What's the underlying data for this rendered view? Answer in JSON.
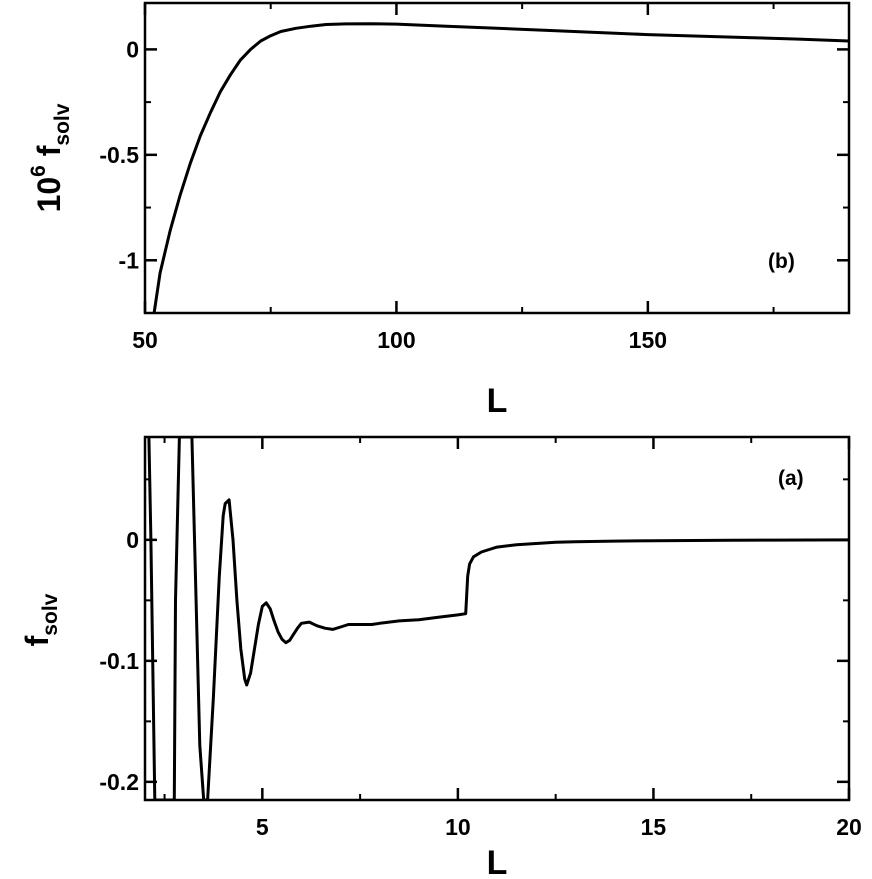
{
  "chart_data": [
    {
      "panel": "(b)",
      "type": "line",
      "xlabel": "L",
      "ylabel": {
        "prefix": "10",
        "exponent": "6",
        "symbol": "f",
        "subscript": "solv"
      },
      "xlim": [
        50,
        190
      ],
      "ylim": [
        -1.25,
        0.22
      ],
      "xticks": [
        50,
        100,
        150
      ],
      "xtick_labels": [
        "50",
        "100",
        "150"
      ],
      "yticks": [
        -1,
        -0.5,
        0
      ],
      "ytick_labels": [
        "-1",
        "-0.5",
        "0"
      ],
      "grid": false,
      "series": [
        {
          "color": "#000000",
          "x": [
            51.8,
            53,
            55,
            57,
            59,
            61,
            63,
            65,
            67,
            69,
            71,
            73,
            75,
            77,
            80,
            83,
            86,
            90,
            95,
            100,
            110,
            120,
            130,
            140,
            150,
            160,
            170,
            180,
            190
          ],
          "y": [
            -1.25,
            -1.06,
            -0.86,
            -0.69,
            -0.54,
            -0.41,
            -0.3,
            -0.2,
            -0.12,
            -0.05,
            0.0,
            0.04,
            0.065,
            0.085,
            0.1,
            0.11,
            0.118,
            0.121,
            0.122,
            0.12,
            0.11,
            0.1,
            0.09,
            0.08,
            0.07,
            0.063,
            0.056,
            0.049,
            0.04
          ]
        }
      ]
    },
    {
      "panel": "(a)",
      "type": "line",
      "xlabel": "L",
      "ylabel": {
        "symbol": "f",
        "subscript": "solv"
      },
      "xlim": [
        2.0,
        20
      ],
      "ylim": [
        -0.215,
        0.085
      ],
      "xticks": [
        5,
        10,
        15,
        20
      ],
      "xtick_labels": [
        "5",
        "10",
        "15",
        "20"
      ],
      "yticks": [
        -0.2,
        -0.1,
        0
      ],
      "ytick_labels": [
        "-0.2",
        "-0.1",
        "0"
      ],
      "grid": false,
      "series": [
        {
          "color": "#000000",
          "x": [
            2.1,
            2.15,
            2.25,
            2.45,
            2.6,
            2.75,
            2.78,
            2.88,
            3.05,
            3.2,
            3.4,
            3.5,
            3.6,
            3.75,
            3.9,
            4.0,
            4.05,
            4.15,
            4.25,
            4.35,
            4.45,
            4.55,
            4.6,
            4.7,
            4.8,
            4.9,
            5.0,
            5.1,
            5.2,
            5.3,
            5.4,
            5.5,
            5.6,
            5.7,
            5.8,
            5.9,
            6.0,
            6.2,
            6.4,
            6.6,
            6.8,
            7.0,
            7.2,
            7.5,
            7.8,
            8.0,
            8.5,
            9.0,
            9.5,
            10.0,
            10.2,
            10.25,
            10.3,
            10.4,
            10.6,
            10.8,
            11.0,
            11.5,
            12.0,
            12.5,
            13.0,
            14.0,
            15.0,
            16.0,
            17.0,
            18.0,
            19.0,
            20.0
          ],
          "y": [
            0.085,
            0.0,
            -0.215,
            -0.215,
            -0.215,
            -0.215,
            -0.05,
            0.085,
            0.085,
            0.085,
            -0.17,
            -0.215,
            -0.215,
            -0.13,
            -0.03,
            0.02,
            0.03,
            0.033,
            0.0,
            -0.05,
            -0.09,
            -0.115,
            -0.12,
            -0.11,
            -0.09,
            -0.07,
            -0.055,
            -0.052,
            -0.057,
            -0.067,
            -0.076,
            -0.082,
            -0.085,
            -0.083,
            -0.078,
            -0.073,
            -0.069,
            -0.068,
            -0.071,
            -0.073,
            -0.074,
            -0.072,
            -0.07,
            -0.07,
            -0.07,
            -0.069,
            -0.067,
            -0.066,
            -0.064,
            -0.062,
            -0.061,
            -0.03,
            -0.02,
            -0.014,
            -0.01,
            -0.008,
            -0.006,
            -0.004,
            -0.003,
            -0.002,
            -0.0015,
            -0.001,
            -0.0007,
            -0.0005,
            -0.0003,
            -0.0002,
            -0.0001,
            0.0
          ]
        }
      ]
    }
  ]
}
